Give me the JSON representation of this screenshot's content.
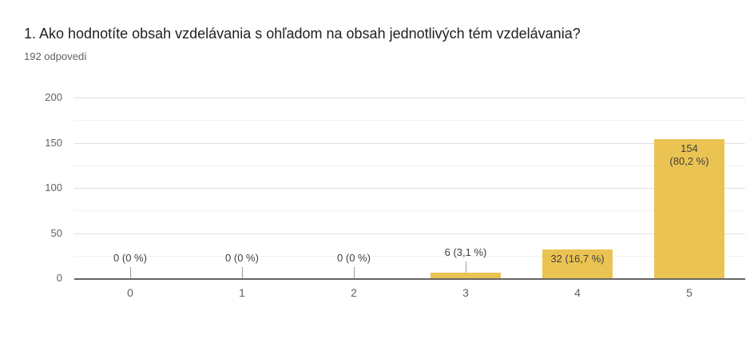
{
  "header": {
    "title": "1. Ako hodnotíte obsah vzdelávania s ohľadom na obsah jednotlivých tém vzdelávania?",
    "subtitle": "192 odpovedí"
  },
  "chart_data": {
    "type": "bar",
    "title": "1. Ako hodnotíte obsah vzdelávania s ohľadom na obsah jednotlivých tém vzdelávania?",
    "subtitle": "192 odpovedí",
    "categories": [
      "0",
      "1",
      "2",
      "3",
      "4",
      "5"
    ],
    "values": [
      0,
      0,
      0,
      6,
      32,
      154
    ],
    "percent_labels": [
      "0 (0 %)",
      "0 (0 %)",
      "0 (0 %)",
      "6 (3,1 %)",
      "32 (16,7 %)",
      "154 (80,2 %)"
    ],
    "annotations": [
      {
        "lines": [
          "0 (0 %)"
        ],
        "position": "above"
      },
      {
        "lines": [
          "0 (0 %)"
        ],
        "position": "above"
      },
      {
        "lines": [
          "0 (0 %)"
        ],
        "position": "above"
      },
      {
        "lines": [
          "6 (3,1 %)"
        ],
        "position": "above"
      },
      {
        "lines": [
          "32 (16,7 %)"
        ],
        "position": "inside"
      },
      {
        "lines": [
          "154",
          "(80,2 %)"
        ],
        "position": "inside"
      }
    ],
    "yticks": [
      0,
      50,
      100,
      150,
      200
    ],
    "minor_ticks": [
      25,
      75,
      125,
      175
    ],
    "ylim": [
      0,
      200
    ],
    "xlabel": "",
    "ylabel": "",
    "legend": "none",
    "grid": true,
    "colors": {
      "bar_fill": "#EAC352",
      "axis_line": "#666666",
      "grid_major": "#E0E0E0",
      "grid_minor": "#F2F2F2",
      "tick_connector": "#9E9E9E",
      "title_text": "#212121",
      "subtitle_text": "#5F6368",
      "axis_text": "#616161",
      "annotation_text": "#404040"
    }
  }
}
